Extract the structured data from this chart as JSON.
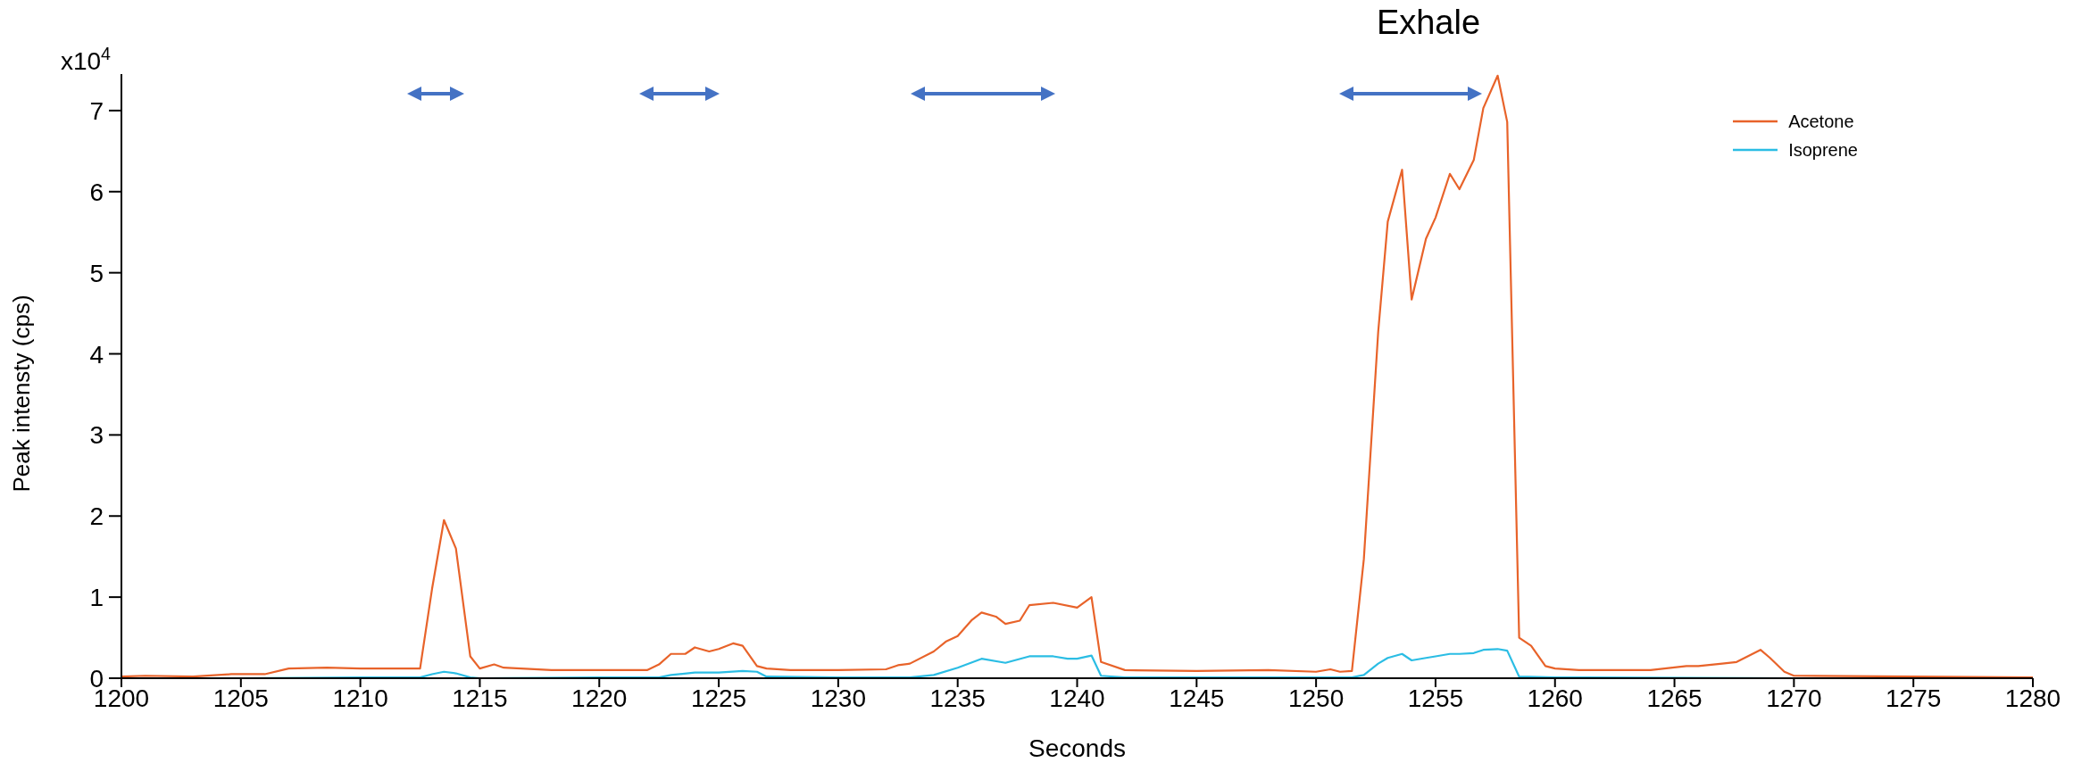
{
  "chart_data": {
    "type": "line",
    "xlabel": "Seconds",
    "ylabel": "Peak intensty (cps)",
    "annotations": [
      "Exhale",
      "x10$^{4}$"
    ],
    "xlim": [
      1200,
      1280
    ],
    "xticks": [
      1200,
      1205,
      1210,
      1215,
      1220,
      1225,
      1230,
      1235,
      1240,
      1245,
      1250,
      1255,
      1260,
      1265,
      1270,
      1275,
      1280
    ],
    "ylim": [
      0,
      7.45
    ],
    "yticks": [
      0,
      1,
      2,
      3,
      4,
      5,
      6,
      7
    ],
    "legend": "top right",
    "marker": "none",
    "line_style": "solid",
    "series": [
      {
        "name": "Acetone",
        "color": "#e8632a",
        "x": [
          1200,
          1201,
          1203,
          1204.6,
          1206,
          1207,
          1208.6,
          1210,
          1212.5,
          1213,
          1213.5,
          1214,
          1214.6,
          1215,
          1215.6,
          1216,
          1218,
          1220,
          1222,
          1222.5,
          1223,
          1223.6,
          1224,
          1224.6,
          1225,
          1225.6,
          1226,
          1226.6,
          1227,
          1228,
          1230,
          1232,
          1232.5,
          1233,
          1234,
          1234.5,
          1235,
          1235.6,
          1236,
          1236.6,
          1237,
          1237.6,
          1238,
          1239,
          1240,
          1240.6,
          1241,
          1242,
          1245,
          1248,
          1250,
          1250.6,
          1251,
          1251.5,
          1252,
          1252.6,
          1253,
          1253.6,
          1254,
          1254.6,
          1255,
          1255.6,
          1256,
          1256.6,
          1257,
          1257.6,
          1258,
          1258.5,
          1259,
          1259.6,
          1260,
          1261,
          1264,
          1265.5,
          1266,
          1267,
          1267.6,
          1268.6,
          1269,
          1269.6,
          1270,
          1275,
          1280
        ],
        "values": [
          0.02,
          0.03,
          0.02,
          0.05,
          0.05,
          0.12,
          0.13,
          0.12,
          0.12,
          1.1,
          1.95,
          1.6,
          0.27,
          0.12,
          0.17,
          0.13,
          0.1,
          0.1,
          0.1,
          0.17,
          0.3,
          0.3,
          0.38,
          0.33,
          0.36,
          0.43,
          0.4,
          0.15,
          0.12,
          0.1,
          0.1,
          0.11,
          0.16,
          0.18,
          0.33,
          0.45,
          0.52,
          0.72,
          0.81,
          0.76,
          0.67,
          0.71,
          0.9,
          0.93,
          0.87,
          1.0,
          0.2,
          0.1,
          0.09,
          0.1,
          0.08,
          0.11,
          0.08,
          0.09,
          1.47,
          4.27,
          5.63,
          6.27,
          4.67,
          5.42,
          5.68,
          6.22,
          6.03,
          6.39,
          7.03,
          7.43,
          6.86,
          0.5,
          0.4,
          0.15,
          0.12,
          0.1,
          0.1,
          0.15,
          0.15,
          0.18,
          0.2,
          0.35,
          0.25,
          0.08,
          0.03,
          0.02,
          0.01
        ]
      },
      {
        "name": "Isoprene",
        "color": "#2bbde4",
        "x": [
          1200,
          1205,
          1210,
          1212.5,
          1213,
          1213.5,
          1214,
          1214.6,
          1215,
          1220,
          1222.5,
          1223,
          1224,
          1225,
          1226,
          1226.6,
          1227,
          1230,
          1233,
          1234,
          1235,
          1236,
          1237,
          1238,
          1239,
          1239.6,
          1240,
          1240.6,
          1241,
          1242,
          1250,
          1251.5,
          1252,
          1252.6,
          1253,
          1253.6,
          1254,
          1254.6,
          1255,
          1255.6,
          1256,
          1256.6,
          1257,
          1257.6,
          1258,
          1258.5,
          1260,
          1270,
          1280
        ],
        "values": [
          0,
          0,
          0.01,
          0.01,
          0.05,
          0.08,
          0.06,
          0.01,
          0,
          0.01,
          0.01,
          0.04,
          0.07,
          0.07,
          0.09,
          0.08,
          0.02,
          0.01,
          0.01,
          0.04,
          0.13,
          0.24,
          0.19,
          0.27,
          0.27,
          0.24,
          0.24,
          0.28,
          0.03,
          0.01,
          0.01,
          0.01,
          0.04,
          0.18,
          0.25,
          0.3,
          0.22,
          0.25,
          0.27,
          0.3,
          0.3,
          0.31,
          0.35,
          0.36,
          0.34,
          0.02,
          0.01,
          0,
          0
        ]
      }
    ]
  }
}
